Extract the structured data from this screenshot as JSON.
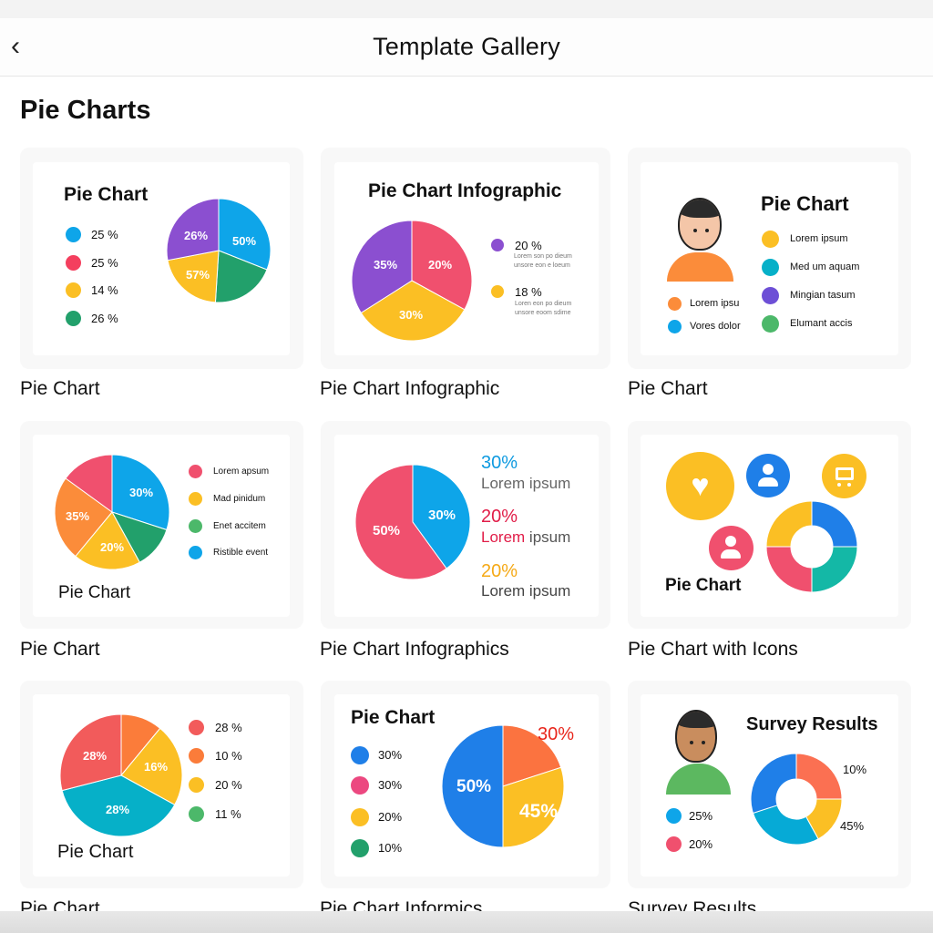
{
  "header": {
    "title": "Template Gallery",
    "back_icon": "chevron-left-icon"
  },
  "section_title": "Pie Charts",
  "cards": [
    {
      "label": "Pie Chart",
      "title": "Pie Chart",
      "legend": [
        {
          "text": "25 %",
          "color": "#0ea5e9"
        },
        {
          "text": "25 %",
          "color": "#f43f5e"
        },
        {
          "text": "14 %",
          "color": "#fbbf24"
        },
        {
          "text": "26 %",
          "color": "#22a06b"
        }
      ],
      "slices": [
        {
          "share": 0.31,
          "color": "#0ea5e9",
          "label": "50%"
        },
        {
          "share": 0.2,
          "color": "#22a06b",
          "label": ""
        },
        {
          "share": 0.21,
          "color": "#fbbf24",
          "label": "57%"
        },
        {
          "share": 0.28,
          "color": "#8b4fd0",
          "label": "26%"
        }
      ]
    },
    {
      "label": "Pie Chart Infographic",
      "title": "Pie Chart Infographic",
      "legend": [
        {
          "text": "20 %",
          "desc1": "Lorem son po dieum",
          "desc2": "unsore eon e loeum",
          "color": "#8b4fd0"
        },
        {
          "text": "18 %",
          "desc1": "Loren eon po dieum",
          "desc2": "unsore eoom sdime",
          "color": "#fbbf24"
        }
      ],
      "slices": [
        {
          "share": 0.33,
          "color": "#f0506e",
          "label": "20%"
        },
        {
          "share": 0.33,
          "color": "#fbbf24",
          "label": "30%"
        },
        {
          "share": 0.34,
          "color": "#8b4fd0",
          "label": "35%"
        }
      ]
    },
    {
      "label": "Pie Chart",
      "title": "Pie Chart",
      "person_legend": [
        {
          "text": "Lorem ipsu",
          "color": "#fb8c3a"
        },
        {
          "text": "Vores dolor",
          "color": "#0ea5e9"
        }
      ],
      "legend": [
        {
          "text": "Lorem ipsum",
          "color": "#fbbf24"
        },
        {
          "text": "Med um aquam",
          "color": "#06b0c8"
        },
        {
          "text": "Mingian tasum",
          "color": "#6d4fd6"
        },
        {
          "text": "Elumant accis",
          "color": "#4cb86a"
        }
      ]
    },
    {
      "label": "Pie Chart",
      "title": "Pie Chart",
      "legend": [
        {
          "text": "Lorem apsum",
          "color": "#f0506e"
        },
        {
          "text": "Mad pinidum",
          "color": "#fbbf24"
        },
        {
          "text": "Enet accitem",
          "color": "#4cb86a"
        },
        {
          "text": "Ristible event",
          "color": "#0ea5e9"
        }
      ],
      "slices": [
        {
          "share": 0.3,
          "color": "#0ea5e9",
          "label": "30%"
        },
        {
          "share": 0.12,
          "color": "#22a06b",
          "label": ""
        },
        {
          "share": 0.19,
          "color": "#fbbf24",
          "label": "20%"
        },
        {
          "share": 0.24,
          "color": "#fb8c3a",
          "label": "35%"
        },
        {
          "share": 0.15,
          "color": "#f0506e",
          "label": ""
        }
      ]
    },
    {
      "label": "Pie Chart Infographics",
      "stats": [
        {
          "value": "30%",
          "text": "Lorem ipsum",
          "color": "#0e9ae0"
        },
        {
          "value": "20%",
          "text_a": "Lorem",
          "text_b": "ipsum",
          "color": "#e11d48"
        },
        {
          "value": "20%",
          "text": "Lorem ipsum",
          "color": "#f5a916"
        }
      ],
      "slices": [
        {
          "share": 0.4,
          "color": "#0ea5e9",
          "label": "30%"
        },
        {
          "share": 0.6,
          "color": "#f0506e",
          "label": "50%"
        }
      ]
    },
    {
      "label": "Pie Chart with Icons",
      "title": "Pie Chart",
      "icons": [
        "heart-icon",
        "user-icon",
        "cart-icon",
        "user-icon"
      ],
      "slices": [
        {
          "share": 0.25,
          "color": "#1f7fe8",
          "label": ""
        },
        {
          "share": 0.25,
          "color": "#14b8a6",
          "label": ""
        },
        {
          "share": 0.25,
          "color": "#f0506e",
          "label": ""
        },
        {
          "share": 0.25,
          "color": "#fbbf24",
          "label": ""
        }
      ]
    },
    {
      "label": "Pie Chart",
      "title": "Pie Chart",
      "legend": [
        {
          "text": "28 %",
          "color": "#f25b5b"
        },
        {
          "text": "10 %",
          "color": "#fb7c3a"
        },
        {
          "text": "20 %",
          "color": "#fbbf24"
        },
        {
          "text": "11 %",
          "color": "#4cb86a"
        }
      ],
      "slices": [
        {
          "share": 0.11,
          "color": "#fb7c3a",
          "label": ""
        },
        {
          "share": 0.22,
          "color": "#fbbf24",
          "label": "16%"
        },
        {
          "share": 0.38,
          "color": "#06b0c8",
          "label": "28%"
        },
        {
          "share": 0.29,
          "color": "#f25b5b",
          "label": "28%"
        }
      ]
    },
    {
      "label": "Pie Chart Informics",
      "title": "Pie Chart",
      "legend": [
        {
          "text": "30%",
          "color": "#1f7fe8"
        },
        {
          "text": "30%",
          "color": "#ec4880"
        },
        {
          "text": "20%",
          "color": "#fbbf24"
        },
        {
          "text": "10%",
          "color": "#22a06b"
        }
      ],
      "slices": [
        {
          "share": 0.2,
          "color": "#fb7340",
          "label": "30%"
        },
        {
          "share": 0.3,
          "color": "#fbbf24",
          "label": "45%"
        },
        {
          "share": 0.5,
          "color": "#1f7fe8",
          "label": "50%"
        }
      ]
    },
    {
      "label": "Survey Results",
      "title": "Survey Results",
      "legend": [
        {
          "text": "25%",
          "color": "#0ea5e9"
        },
        {
          "text": "20%",
          "color": "#f0506e"
        }
      ],
      "ring_labels": [
        "10%",
        "45%"
      ],
      "slices": [
        {
          "share": 0.25,
          "color": "#fb7052"
        },
        {
          "share": 0.17,
          "color": "#fbbf24"
        },
        {
          "share": 0.28,
          "color": "#06aad6"
        },
        {
          "share": 0.3,
          "color": "#1f7fe8"
        }
      ]
    }
  ]
}
